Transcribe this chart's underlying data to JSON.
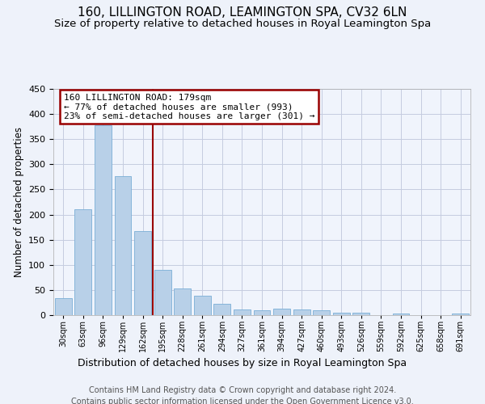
{
  "title1": "160, LILLINGTON ROAD, LEAMINGTON SPA, CV32 6LN",
  "title2": "Size of property relative to detached houses in Royal Leamington Spa",
  "xlabel": "Distribution of detached houses by size in Royal Leamington Spa",
  "ylabel": "Number of detached properties",
  "footer1": "Contains HM Land Registry data © Crown copyright and database right 2024.",
  "footer2": "Contains public sector information licensed under the Open Government Licence v3.0.",
  "categories": [
    "30sqm",
    "63sqm",
    "96sqm",
    "129sqm",
    "162sqm",
    "195sqm",
    "228sqm",
    "261sqm",
    "294sqm",
    "327sqm",
    "361sqm",
    "394sqm",
    "427sqm",
    "460sqm",
    "493sqm",
    "526sqm",
    "559sqm",
    "592sqm",
    "625sqm",
    "658sqm",
    "691sqm"
  ],
  "values": [
    33,
    211,
    378,
    276,
    167,
    90,
    53,
    39,
    22,
    12,
    9,
    13,
    11,
    10,
    5,
    5,
    0,
    3,
    0,
    0,
    3
  ],
  "bar_color": "#b8d0e8",
  "bar_edge_color": "#7aaed6",
  "annotation_text_line1": "160 LILLINGTON ROAD: 179sqm",
  "annotation_text_line2": "← 77% of detached houses are smaller (993)",
  "annotation_text_line3": "23% of semi-detached houses are larger (301) →",
  "annotation_box_color": "#ffffff",
  "annotation_box_edge_color": "#990000",
  "vline_color": "#990000",
  "vline_x": 4.5,
  "ylim": [
    0,
    450
  ],
  "yticks": [
    0,
    50,
    100,
    150,
    200,
    250,
    300,
    350,
    400,
    450
  ],
  "bg_color": "#eef2fa",
  "plot_bg_color": "#f0f4fc",
  "grid_color": "#c5cce0",
  "title1_fontsize": 11,
  "title2_fontsize": 9.5,
  "xlabel_fontsize": 9,
  "ylabel_fontsize": 8.5,
  "tick_fontsize": 8,
  "xtick_fontsize": 7,
  "footer_fontsize": 7,
  "ann_fontsize": 8
}
